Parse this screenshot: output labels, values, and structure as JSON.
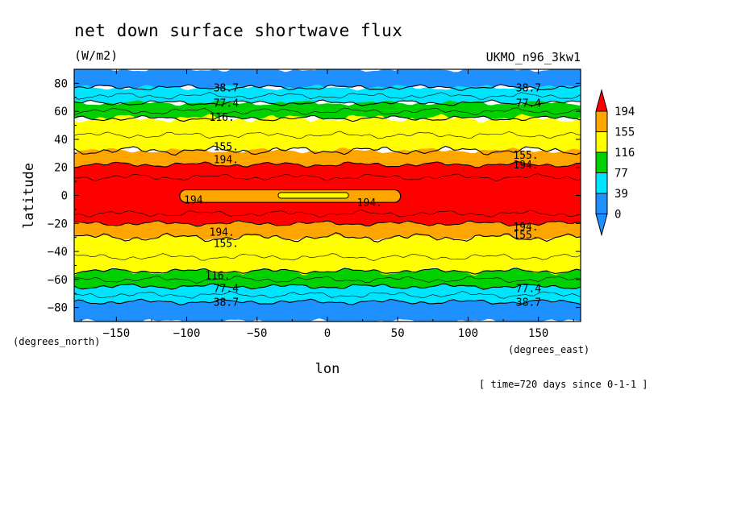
{
  "chart_data": {
    "type": "contour",
    "title": "net down surface shortwave flux",
    "units": "(W/m2)",
    "dataset": "UKMO_n96_3kw1",
    "xlabel": "lon",
    "ylabel": "latitude",
    "x_units": "(degrees_east)",
    "y_units": "(degrees_north)",
    "time_label": "[ time=720 days since 0-1-1 ]",
    "xlim": [
      -180,
      180
    ],
    "ylim": [
      -90,
      90
    ],
    "x_ticks": [
      -150,
      -100,
      -50,
      0,
      50,
      100,
      150
    ],
    "x_tick_labels": [
      "−150",
      "−100",
      "−50",
      "0",
      "50",
      "100",
      "150"
    ],
    "y_ticks": [
      80,
      60,
      40,
      20,
      0,
      -20,
      -40,
      -60,
      -80
    ],
    "y_tick_labels": [
      "80",
      "60",
      "40",
      "20",
      "0",
      "−20",
      "−40",
      "−60",
      "−80"
    ],
    "levels": [
      0,
      39,
      77,
      116,
      155,
      194
    ],
    "level_labels": [
      "0",
      "39",
      "77",
      "116",
      "155",
      "194"
    ],
    "fill_colors": [
      "#1e90ff",
      "#00e5ff",
      "#00d000",
      "#ffff00",
      "#ffa500",
      "#ff0000"
    ],
    "bands_north": [
      {
        "level": 0,
        "lat_lo": 77,
        "lat_hi": 90
      },
      {
        "level": 39,
        "lat_lo": 66,
        "lat_hi": 77
      },
      {
        "level": 77,
        "lat_lo": 55,
        "lat_hi": 66
      },
      {
        "level": 116,
        "lat_lo": 32,
        "lat_hi": 55
      },
      {
        "level": 155,
        "lat_lo": 22,
        "lat_hi": 32
      }
    ],
    "bands_south": [
      {
        "level": 0,
        "lat_lo": -90,
        "lat_hi": -76
      },
      {
        "level": 39,
        "lat_lo": -76,
        "lat_hi": -65
      },
      {
        "level": 77,
        "lat_lo": -65,
        "lat_hi": -54
      },
      {
        "level": 116,
        "lat_lo": -54,
        "lat_hi": -30
      },
      {
        "level": 155,
        "lat_lo": -30,
        "lat_hi": -20
      }
    ],
    "tropical_band": {
      "level": 194,
      "lat_lo": -20,
      "lat_hi": 22
    },
    "equatorial_minimum": {
      "level": 155,
      "lon_min": -105,
      "lon_max": 52,
      "lat_lo": -5,
      "lat_hi": 4
    },
    "equatorial_core": {
      "level": 116,
      "lon_min": -35,
      "lon_max": 15,
      "lat_lo": -2,
      "lat_hi": 2
    },
    "contour_labels": [
      {
        "text": "38.7",
        "lon": -72,
        "lat": 77
      },
      {
        "text": "38.7",
        "lon": 143,
        "lat": 77
      },
      {
        "text": "77.4",
        "lon": -72,
        "lat": 66
      },
      {
        "text": "77.4",
        "lon": 143,
        "lat": 66
      },
      {
        "text": "116.",
        "lon": -75,
        "lat": 56
      },
      {
        "text": "155.",
        "lon": -72,
        "lat": 35
      },
      {
        "text": "194.",
        "lon": -72,
        "lat": 26
      },
      {
        "text": "155.",
        "lon": 141,
        "lat": 29
      },
      {
        "text": "194.",
        "lon": 141,
        "lat": 22
      },
      {
        "text": "194.",
        "lon": -93,
        "lat": -3
      },
      {
        "text": "194.",
        "lon": 30,
        "lat": -5
      },
      {
        "text": "194.",
        "lon": 141,
        "lat": -22
      },
      {
        "text": "155.",
        "lon": 141,
        "lat": -28
      },
      {
        "text": "194.",
        "lon": -75,
        "lat": -26
      },
      {
        "text": "155.",
        "lon": -72,
        "lat": -34
      },
      {
        "text": "116.",
        "lon": -78,
        "lat": -57
      },
      {
        "text": "77.4",
        "lon": -72,
        "lat": -66
      },
      {
        "text": "77.4",
        "lon": 143,
        "lat": -66
      },
      {
        "text": "38.7",
        "lon": -72,
        "lat": -76
      },
      {
        "text": "38.7",
        "lon": 143,
        "lat": -76
      }
    ]
  }
}
